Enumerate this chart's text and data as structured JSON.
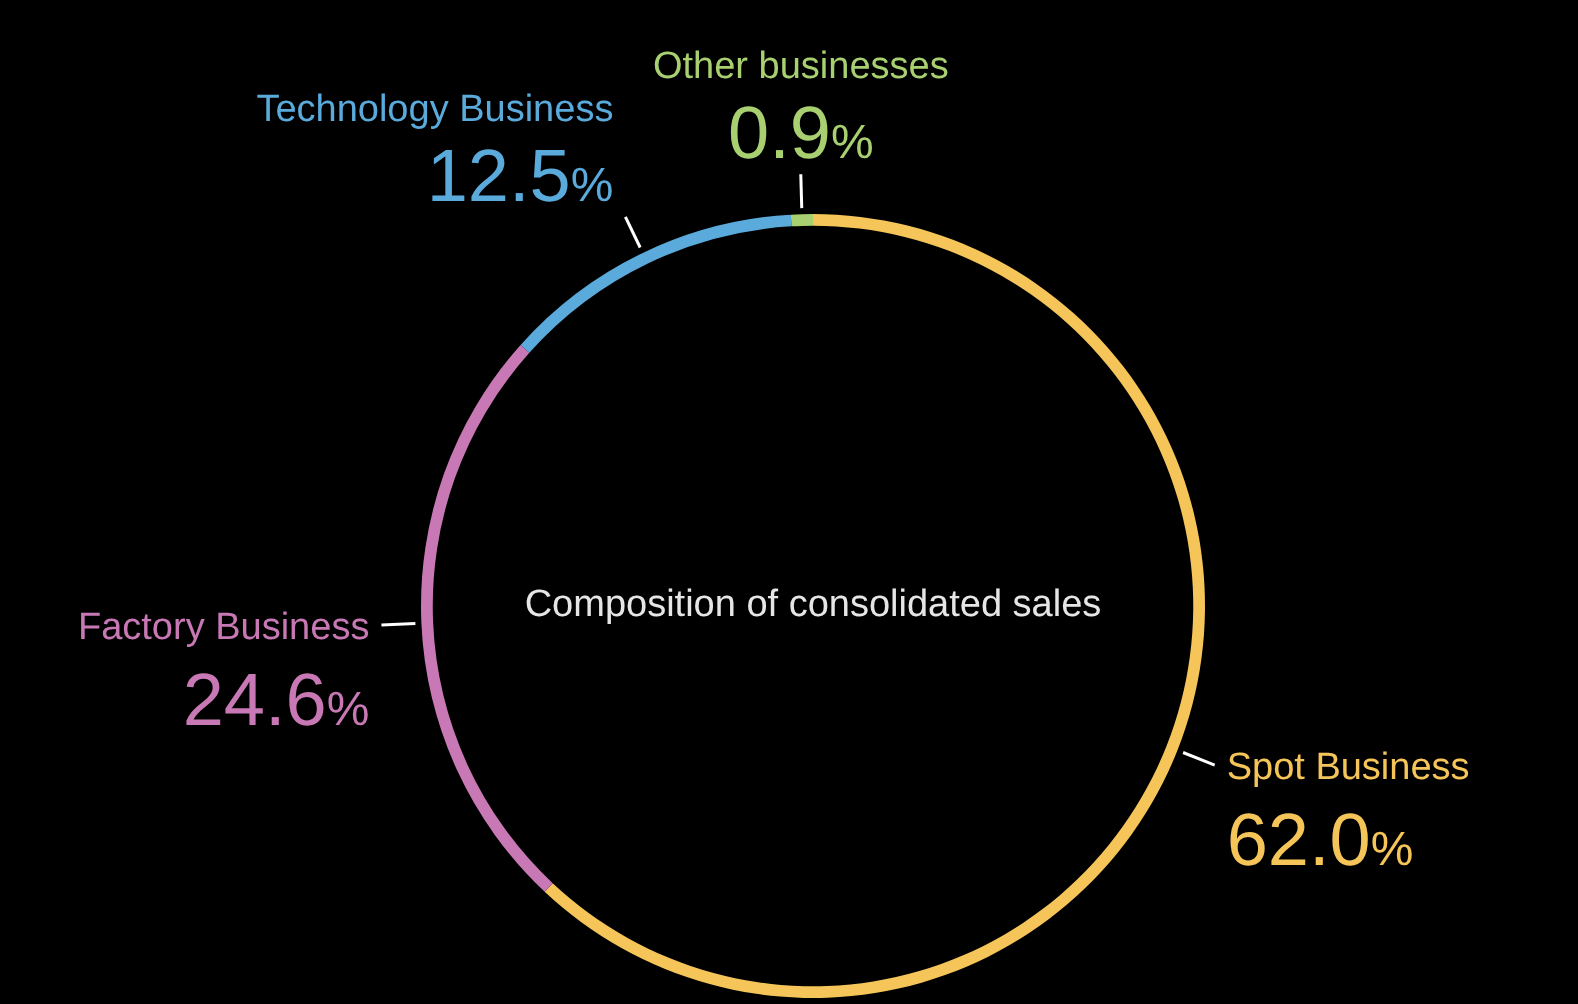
{
  "chart_data": {
    "type": "donut",
    "title": "Composition of consolidated sales",
    "categories": [
      "Spot Business",
      "Factory Business",
      "Technology Business",
      "Other businesses"
    ],
    "values": [
      62.0,
      24.6,
      12.5,
      0.9
    ],
    "colors": [
      "#f5c55a",
      "#c878b4",
      "#5aaadc",
      "#a8d070"
    ],
    "value_labels": [
      "62.0%",
      "24.6%",
      "12.5%",
      "0.9%"
    ],
    "legend": false
  }
}
